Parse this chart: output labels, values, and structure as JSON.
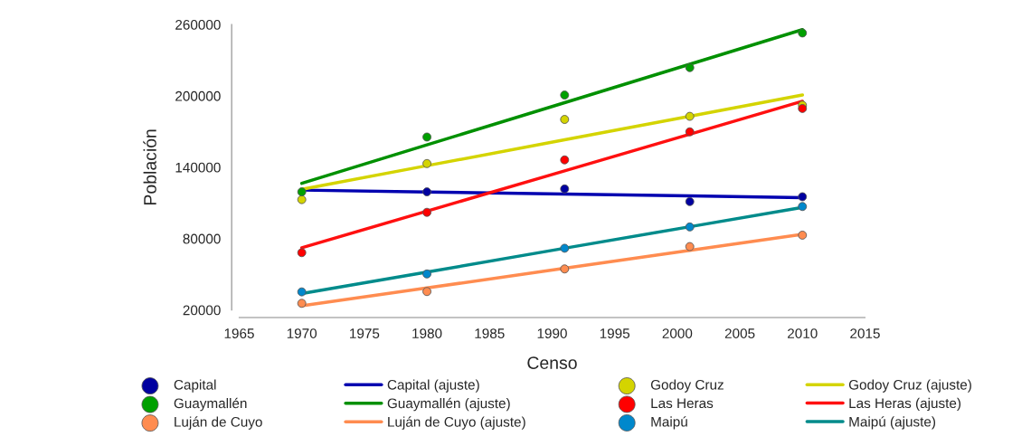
{
  "chart_data": {
    "type": "scatter",
    "xlabel": "Censo",
    "ylabel": "Población",
    "xlim": [
      1965,
      2015
    ],
    "xticks": [
      1965,
      1970,
      1975,
      1980,
      1985,
      1990,
      1995,
      2000,
      2005,
      2010,
      2015
    ],
    "ylim": [
      20000,
      260000
    ],
    "yticks": [
      20000,
      80000,
      140000,
      200000,
      260000
    ],
    "grid": false,
    "legend": "bottom",
    "marker": "circle",
    "x": [
      1970,
      1980,
      1991,
      2001,
      2010
    ],
    "series": [
      {
        "name": "Capital",
        "color": "#0000a0",
        "values": [
          null,
          119300,
          121800,
          111100,
          115200
        ]
      },
      {
        "name": "Capital (ajuste)",
        "type": "line",
        "marker": "none",
        "color": "#0000b0",
        "values": [
          120800,
          119200,
          117500,
          115900,
          114500
        ]
      },
      {
        "name": "Godoy Cruz",
        "color": "#d4d400",
        "values": [
          112800,
          143100,
          180200,
          182800,
          192200
        ]
      },
      {
        "name": "Godoy Cruz (ajuste)",
        "type": "line",
        "marker": "none",
        "color": "#d4d400",
        "values": [
          121400,
          141300,
          163100,
          182900,
          200800
        ]
      },
      {
        "name": "Guaymallén",
        "color": "#00a000",
        "values": [
          119300,
          165400,
          200700,
          223800,
          252900
        ]
      },
      {
        "name": "Guaymallén (ajuste)",
        "type": "line",
        "marker": "none",
        "color": "#009000",
        "values": [
          126500,
          158800,
          194300,
          226600,
          255700
        ]
      },
      {
        "name": "Las Heras",
        "color": "#ff0000",
        "values": [
          68200,
          102100,
          146200,
          169800,
          189400
        ]
      },
      {
        "name": "Las Heras (ajuste)",
        "type": "line",
        "marker": "none",
        "color": "#ff1010",
        "values": [
          72300,
          103100,
          137000,
          167800,
          195500
        ]
      },
      {
        "name": "Luján de Cuyo",
        "color": "#ff8c50",
        "values": [
          25600,
          35500,
          54500,
          73300,
          82900
        ]
      },
      {
        "name": "Luján de Cuyo (ajuste)",
        "type": "line",
        "marker": "none",
        "color": "#ff8c50",
        "values": [
          23500,
          38500,
          55100,
          70100,
          83600
        ]
      },
      {
        "name": "Maipú",
        "color": "#0088cc",
        "values": [
          35200,
          50300,
          71900,
          89800,
          107000
        ]
      },
      {
        "name": "Maipú (ajuste)",
        "type": "line",
        "marker": "none",
        "color": "#008b8b",
        "values": [
          33800,
          51900,
          71900,
          90000,
          106300
        ]
      }
    ]
  }
}
